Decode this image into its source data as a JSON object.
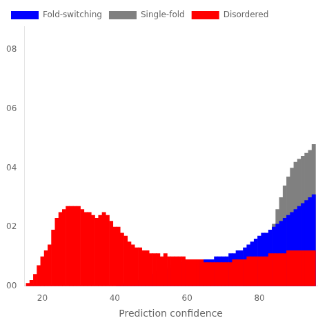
{
  "chart_data": {
    "type": "bar",
    "xlabel": "Prediction confidence",
    "xlim": [
      15,
      96
    ],
    "ylim": [
      0,
      0.088
    ],
    "xticks": [
      20,
      40,
      60,
      80
    ],
    "yticks": [
      {
        "value": 0.0,
        "label": "00"
      },
      {
        "value": 0.02,
        "label": "02"
      },
      {
        "value": 0.04,
        "label": "04"
      },
      {
        "value": 0.06,
        "label": "06"
      },
      {
        "value": 0.08,
        "label": "08"
      }
    ],
    "grid": false,
    "legend": "upper left",
    "x": [
      16,
      17,
      18,
      19,
      20,
      21,
      22,
      23,
      24,
      25,
      26,
      27,
      28,
      29,
      30,
      31,
      32,
      33,
      34,
      35,
      36,
      37,
      38,
      39,
      40,
      41,
      42,
      43,
      44,
      45,
      46,
      47,
      48,
      49,
      50,
      51,
      52,
      53,
      54,
      55,
      56,
      57,
      58,
      59,
      60,
      61,
      62,
      63,
      64,
      65,
      66,
      67,
      68,
      69,
      70,
      71,
      72,
      73,
      74,
      75,
      76,
      77,
      78,
      79,
      80,
      81,
      82,
      83,
      84,
      85,
      86,
      87,
      88,
      89,
      90,
      91,
      92,
      93,
      94,
      95
    ],
    "series": [
      {
        "name": "Fold-switching",
        "color": "#0000ff",
        "values": [
          0.0,
          0.0,
          0.0,
          0.0,
          0.0,
          0.0,
          0.0,
          0.0,
          0.0,
          0.0,
          0.0,
          0.0,
          0.0,
          0.0,
          0.0,
          0.0,
          0.0,
          0.0,
          0.0,
          0.0,
          0.0,
          0.0,
          0.0,
          0.0,
          0.0,
          0.001,
          0.001,
          0.001,
          0.001,
          0.002,
          0.002,
          0.002,
          0.003,
          0.003,
          0.004,
          0.004,
          0.005,
          0.005,
          0.006,
          0.006,
          0.007,
          0.007,
          0.008,
          0.008,
          0.009,
          0.009,
          0.009,
          0.009,
          0.009,
          0.009,
          0.009,
          0.009,
          0.01,
          0.01,
          0.01,
          0.01,
          0.011,
          0.011,
          0.012,
          0.012,
          0.013,
          0.014,
          0.015,
          0.016,
          0.017,
          0.018,
          0.018,
          0.019,
          0.02,
          0.021,
          0.022,
          0.023,
          0.024,
          0.025,
          0.026,
          0.027,
          0.028,
          0.029,
          0.03,
          0.031
        ]
      },
      {
        "name": "Single-fold",
        "color": "#808080",
        "values": [
          0.0,
          0.0,
          0.0,
          0.0,
          0.0,
          0.0,
          0.0,
          0.0,
          0.0,
          0.0,
          0.0,
          0.0,
          0.0,
          0.0,
          0.0,
          0.0,
          0.0,
          0.0,
          0.0,
          0.0,
          0.0,
          0.0,
          0.0,
          0.0,
          0.0,
          0.0,
          0.0,
          0.0,
          0.0,
          0.0,
          0.0,
          0.0,
          0.0,
          0.0,
          0.0,
          0.0,
          0.0,
          0.0,
          0.0,
          0.0,
          0.0,
          0.0,
          0.0,
          0.0,
          0.0,
          0.0,
          0.0,
          0.0,
          0.0,
          0.0,
          0.0,
          0.0,
          0.0,
          0.0,
          0.0,
          0.0,
          0.0,
          0.0,
          0.0,
          0.0,
          0.001,
          0.002,
          0.003,
          0.004,
          0.006,
          0.008,
          0.012,
          0.016,
          0.021,
          0.026,
          0.03,
          0.034,
          0.037,
          0.04,
          0.042,
          0.043,
          0.044,
          0.045,
          0.046,
          0.048
        ]
      },
      {
        "name": "Disordered",
        "color": "#ff0000",
        "values": [
          0.001,
          0.002,
          0.004,
          0.007,
          0.01,
          0.012,
          0.014,
          0.019,
          0.023,
          0.025,
          0.026,
          0.027,
          0.027,
          0.027,
          0.027,
          0.026,
          0.025,
          0.025,
          0.024,
          0.023,
          0.024,
          0.025,
          0.024,
          0.022,
          0.02,
          0.02,
          0.018,
          0.017,
          0.015,
          0.014,
          0.013,
          0.013,
          0.012,
          0.012,
          0.011,
          0.011,
          0.011,
          0.01,
          0.011,
          0.01,
          0.01,
          0.01,
          0.01,
          0.01,
          0.009,
          0.009,
          0.009,
          0.009,
          0.009,
          0.008,
          0.008,
          0.008,
          0.008,
          0.008,
          0.008,
          0.008,
          0.008,
          0.009,
          0.009,
          0.009,
          0.009,
          0.01,
          0.01,
          0.01,
          0.01,
          0.01,
          0.01,
          0.011,
          0.011,
          0.011,
          0.011,
          0.011,
          0.012,
          0.012,
          0.012,
          0.012,
          0.012,
          0.012,
          0.012,
          0.012
        ]
      }
    ]
  }
}
